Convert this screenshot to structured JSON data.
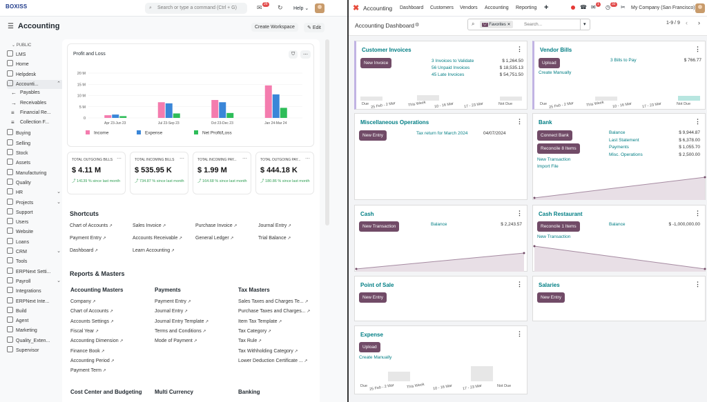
{
  "left": {
    "topbar": {
      "logo": "BOXISS",
      "search_placeholder": "Search or type a command (Ctrl + G)",
      "notif_count": "26",
      "help": "Help"
    },
    "header": {
      "title": "Accounting",
      "create_workspace": "Create Workspace",
      "edit": "Edit"
    },
    "sidebar": {
      "section": "PUBLIC",
      "items": [
        {
          "label": "LMS"
        },
        {
          "label": "Home"
        },
        {
          "label": "Helpdesk"
        },
        {
          "label": "Accounti..."
        },
        {
          "label": "Payables"
        },
        {
          "label": "Receivables"
        },
        {
          "label": "Financial Re..."
        },
        {
          "label": "Collection F..."
        },
        {
          "label": "Buying"
        },
        {
          "label": "Selling"
        },
        {
          "label": "Stock"
        },
        {
          "label": "Assets"
        },
        {
          "label": "Manufacturing"
        },
        {
          "label": "Quality"
        },
        {
          "label": "HR"
        },
        {
          "label": "Projects"
        },
        {
          "label": "Support"
        },
        {
          "label": "Users"
        },
        {
          "label": "Website"
        },
        {
          "label": "Loans"
        },
        {
          "label": "CRM"
        },
        {
          "label": "Tools"
        },
        {
          "label": "ERPNext Setti..."
        },
        {
          "label": "Payroll"
        },
        {
          "label": "Integrations"
        },
        {
          "label": "ERPNext Inte..."
        },
        {
          "label": "Build"
        },
        {
          "label": "Agent"
        },
        {
          "label": "Marketing"
        },
        {
          "label": "Quality_Exten..."
        },
        {
          "label": "Supervisor"
        }
      ]
    },
    "chart": {
      "title": "Profit and Loss"
    },
    "kpis": [
      {
        "title": "TOTAL OUTGOING BILLS",
        "value": "$ 4.11 M",
        "pct": "14139 % since last month"
      },
      {
        "title": "TOTAL INCOMING BILLS",
        "value": "$ 535.95 K",
        "pct": "734.87 % since last month"
      },
      {
        "title": "TOTAL INCOMING PAY...",
        "value": "$ 1.99 M",
        "pct": "164.68 % since last month"
      },
      {
        "title": "TOTAL OUTGOING PAY...",
        "value": "$ 444.18 K",
        "pct": "180.86 % since last month"
      }
    ],
    "shortcuts": {
      "title": "Shortcuts",
      "items": [
        "Chart of Accounts",
        "Sales Invoice",
        "Purchase Invoice",
        "Journal Entry",
        "Payment Entry",
        "Accounts Receivable",
        "General Ledger",
        "Trial Balance",
        "Dashboard",
        "Learn Accounting"
      ]
    },
    "reports": {
      "title": "Reports & Masters",
      "groups": [
        {
          "title": "Accounting Masters",
          "items": [
            "Company",
            "Chart of Accounts",
            "Accounts Settings",
            "Fiscal Year",
            "Accounting Dimension",
            "Finance Book",
            "Accounting Period",
            "Payment Term"
          ]
        },
        {
          "title": "Payments",
          "items": [
            "Payment Entry",
            "Journal Entry",
            "Journal Entry Template",
            "Terms and Conditions",
            "Mode of Payment"
          ]
        },
        {
          "title": "Tax Masters",
          "items": [
            "Sales Taxes and Charges Te...",
            "Purchase Taxes and Charges...",
            "Item Tax Template",
            "Tax Category",
            "Tax Rule",
            "Tax Withholding Category",
            "Lower Deduction Certificate ..."
          ]
        }
      ],
      "bottom": [
        "Cost Center and Budgeting",
        "Multi Currency",
        "Banking"
      ]
    }
  },
  "chart_data": {
    "type": "bar",
    "title": "Profit and Loss",
    "categories": [
      "Apr 23-Jun 23",
      "Jul 23-Sep 23",
      "Oct 23-Dec 23",
      "Jan 24-Mar 24"
    ],
    "yticks": [
      "0",
      "5 M",
      "10 M",
      "15 M",
      "20 M"
    ],
    "ylim": [
      0,
      20
    ],
    "series": [
      {
        "name": "Income",
        "color": "#f47cae",
        "values": [
          1.2,
          7,
          8,
          14.5
        ]
      },
      {
        "name": "Expense",
        "color": "#3a86d8",
        "values": [
          1.5,
          6.5,
          7,
          10.5
        ]
      },
      {
        "name": "Net Profit/Loss",
        "color": "#2ebd59",
        "values": [
          0.8,
          2,
          2.2,
          4.5
        ]
      }
    ]
  },
  "right": {
    "nav": {
      "app": "Accounting",
      "items": [
        "Dashboard",
        "Customers",
        "Vendors",
        "Accounting",
        "Reporting"
      ],
      "badge1": "1",
      "badge2": "32",
      "company": "My Company (San Francisco)"
    },
    "sub": {
      "title": "Accounting Dashboard",
      "facet": "Favorites",
      "search_placeholder": "Search...",
      "pager": "1-9 / 9"
    },
    "cards": {
      "customer_invoices": {
        "title": "Customer Invoices",
        "button": "New Invoice",
        "links": [
          "3 Invoices to Validate",
          "56 Unpaid Invoices",
          "45 Late Invoices"
        ],
        "values": [
          "$ 1,264.50",
          "$ 18,535.13",
          "$ 54,751.50"
        ],
        "xlabels": [
          "Due",
          "25 Feb - 2 Mar",
          "This Week",
          "10 - 16 Mar",
          "17 - 23 Mar",
          "Not Due"
        ]
      },
      "vendor_bills": {
        "title": "Vendor Bills",
        "button": "Upload",
        "link2": "Create Manually",
        "links": [
          "3 Bills to Pay"
        ],
        "values": [
          "$ 766.77"
        ],
        "xlabels": [
          "Due",
          "25 Feb - 2 Mar",
          "This Week",
          "10 - 16 Mar",
          "17 - 23 Mar",
          "Not Due"
        ]
      },
      "misc": {
        "title": "Miscellaneous Operations",
        "button": "New Entry",
        "link": "Tax return for March 2024",
        "date": "04/07/2024"
      },
      "bank": {
        "title": "Bank",
        "btn1": "Connect Bank",
        "btn2": "Reconcile 8 Items",
        "links": [
          "New Transaction",
          "Import File"
        ],
        "labels": [
          "Balance",
          "Last Statement",
          "Payments",
          "Misc. Operations"
        ],
        "values": [
          "$ 9,944.87",
          "$ 6,378.00",
          "$ 1,055.70",
          "$ 2,500.00"
        ]
      },
      "cash": {
        "title": "Cash",
        "button": "New Transaction",
        "label": "Balance",
        "value": "$ 2,243.57"
      },
      "cash_restaurant": {
        "title": "Cash Restaurant",
        "button": "Reconcile 1 Items",
        "link": "New Transaction",
        "label": "Balance",
        "value": "$ -1,000,000.00"
      },
      "pos": {
        "title": "Point of Sale",
        "button": "New Entry"
      },
      "salaries": {
        "title": "Salaries",
        "button": "New Entry"
      },
      "expense": {
        "title": "Expense",
        "button": "Upload",
        "link": "Create Manually",
        "xlabels": [
          "Due",
          "25 Feb - 2 Mar",
          "This Week",
          "10 - 16 Mar",
          "17 - 23 Mar",
          "Not Due"
        ]
      }
    }
  },
  "colors": {
    "odoo_primary": "#714b67",
    "odoo_link": "#017e84",
    "income": "#f47cae",
    "expense": "#3a86d8",
    "net": "#2ebd59"
  }
}
